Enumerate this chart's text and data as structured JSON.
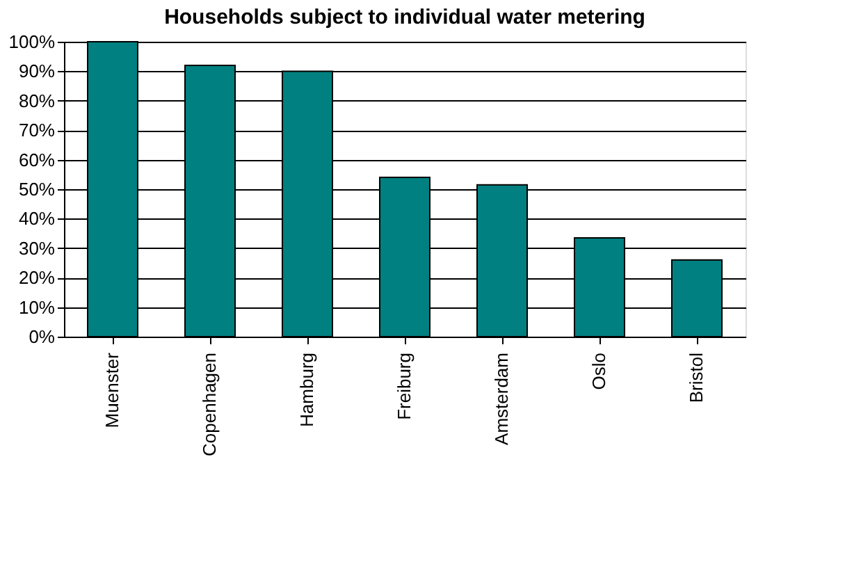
{
  "chart_data": {
    "type": "bar",
    "title": "Households subject to individual water metering",
    "categories": [
      "Muenster",
      "Copenhagen",
      "Hamburg",
      "Freiburg",
      "Amsterdam",
      "Oslo",
      "Bristol"
    ],
    "values": [
      100,
      92,
      90,
      54,
      51.5,
      33.5,
      26
    ],
    "color": "#008080",
    "ylim": [
      0,
      100
    ],
    "yticks": [
      {
        "value": 0,
        "label": "0%"
      },
      {
        "value": 10,
        "label": "10%"
      },
      {
        "value": 20,
        "label": "20%"
      },
      {
        "value": 30,
        "label": "30%"
      },
      {
        "value": 40,
        "label": "40%"
      },
      {
        "value": 50,
        "label": "50%"
      },
      {
        "value": 60,
        "label": "60%"
      },
      {
        "value": 70,
        "label": "70%"
      },
      {
        "value": 80,
        "label": "80%"
      },
      {
        "value": 90,
        "label": "90%"
      },
      {
        "value": 100,
        "label": "100%"
      }
    ],
    "grid": "y"
  }
}
